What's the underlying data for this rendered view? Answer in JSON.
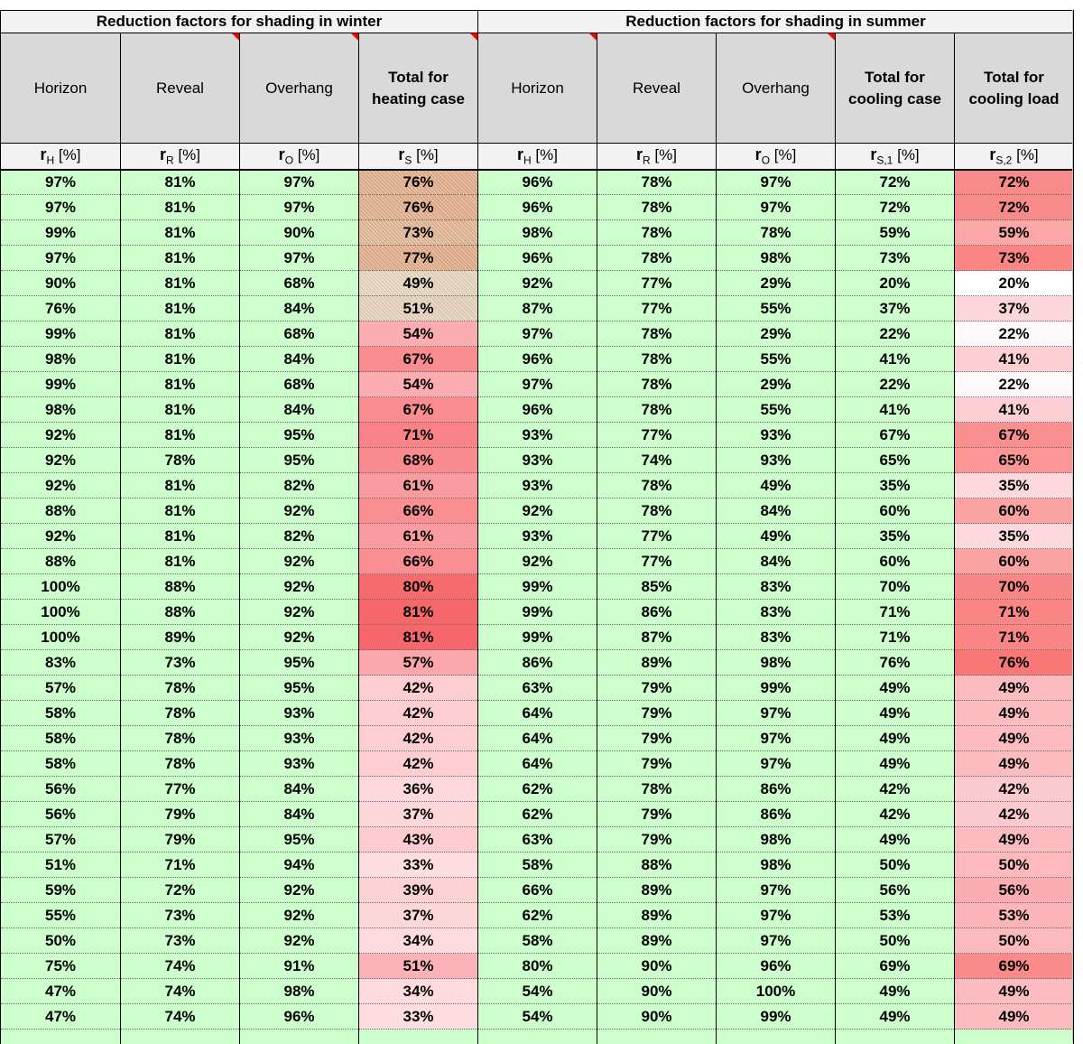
{
  "sheet": {
    "group_headers": [
      "Reduction factors for shading in winter",
      "Reduction factors for shading in summer"
    ],
    "column_titles": [
      {
        "line1": "Horizon",
        "line2": "",
        "bold": false,
        "note": false
      },
      {
        "line1": "Reveal",
        "line2": "",
        "bold": false,
        "note": true
      },
      {
        "line1": "Overhang",
        "line2": "",
        "bold": false,
        "note": true
      },
      {
        "line1": "Total for",
        "line2": "heating case",
        "bold": true,
        "note": true
      },
      {
        "line1": "Horizon",
        "line2": "",
        "bold": false,
        "note": true
      },
      {
        "line1": "Reveal",
        "line2": "",
        "bold": false,
        "note": false
      },
      {
        "line1": "Overhang",
        "line2": "",
        "bold": false,
        "note": true
      },
      {
        "line1": "Total for",
        "line2": "cooling case",
        "bold": true,
        "note": false
      },
      {
        "line1": "Total for",
        "line2": "cooling load",
        "bold": true,
        "note": false
      }
    ],
    "unit_symbols": [
      {
        "main": "r",
        "sub": "H",
        "unit": "[%]"
      },
      {
        "main": "r",
        "sub": "R",
        "unit": "[%]"
      },
      {
        "main": "r",
        "sub": "O",
        "unit": "[%]"
      },
      {
        "main": "r",
        "sub": "S",
        "unit": "[%]"
      },
      {
        "main": "r",
        "sub": "H",
        "unit": "[%]"
      },
      {
        "main": "r",
        "sub": "R",
        "unit": "[%]"
      },
      {
        "main": "r",
        "sub": "O",
        "unit": "[%]"
      },
      {
        "main": "r",
        "sub": "S,1",
        "unit": "[%]"
      },
      {
        "main": "r",
        "sub": "S,2",
        "unit": "[%]"
      }
    ],
    "colors": {
      "grid_fill": "#ccffcc",
      "header_fill": "#d9d9d9",
      "group_fill": "#f2f2f2",
      "comment_marker": "#ff0000"
    },
    "rows": [
      {
        "v": [
          "97%",
          "81%",
          "97%",
          "76%",
          "96%",
          "78%",
          "97%",
          "72%",
          "72%"
        ],
        "c4": "#e6b08c",
        "c9": "#f98a8a",
        "p4": true
      },
      {
        "v": [
          "97%",
          "81%",
          "97%",
          "76%",
          "96%",
          "78%",
          "97%",
          "72%",
          "72%"
        ],
        "c4": "#e6b08c",
        "c9": "#f98a8a",
        "p4": true
      },
      {
        "v": [
          "99%",
          "81%",
          "90%",
          "73%",
          "98%",
          "78%",
          "78%",
          "59%",
          "59%"
        ],
        "c4": "#e6b896",
        "c9": "#fba7a7",
        "p4": true
      },
      {
        "v": [
          "97%",
          "81%",
          "97%",
          "77%",
          "96%",
          "78%",
          "98%",
          "73%",
          "73%"
        ],
        "c4": "#e6ae8a",
        "c9": "#f98585",
        "p4": true
      },
      {
        "v": [
          "90%",
          "81%",
          "68%",
          "49%",
          "92%",
          "77%",
          "29%",
          "20%",
          "20%"
        ],
        "c4": "#ead8c0",
        "c9": "#ffffff",
        "p4": true
      },
      {
        "v": [
          "76%",
          "81%",
          "84%",
          "51%",
          "87%",
          "77%",
          "55%",
          "37%",
          "37%"
        ],
        "c4": "#ead4bc",
        "c9": "#fdd6dc",
        "p4": true
      },
      {
        "v": [
          "99%",
          "81%",
          "68%",
          "54%",
          "97%",
          "78%",
          "29%",
          "22%",
          "22%"
        ],
        "c4": "#fbadb2",
        "c9": "#fef9fa",
        "p4": false
      },
      {
        "v": [
          "98%",
          "81%",
          "84%",
          "67%",
          "96%",
          "78%",
          "55%",
          "41%",
          "41%"
        ],
        "c4": "#f98c8f",
        "c9": "#fdcfd5",
        "p4": false
      },
      {
        "v": [
          "99%",
          "81%",
          "68%",
          "54%",
          "97%",
          "78%",
          "29%",
          "22%",
          "22%"
        ],
        "c4": "#fbadb2",
        "c9": "#fef9fa",
        "p4": false
      },
      {
        "v": [
          "98%",
          "81%",
          "84%",
          "67%",
          "96%",
          "78%",
          "55%",
          "41%",
          "41%"
        ],
        "c4": "#f98c8f",
        "c9": "#fdcfd5",
        "p4": false
      },
      {
        "v": [
          "92%",
          "81%",
          "95%",
          "71%",
          "93%",
          "77%",
          "93%",
          "67%",
          "67%"
        ],
        "c4": "#f88285",
        "c9": "#fa8f8f",
        "p4": false
      },
      {
        "v": [
          "92%",
          "78%",
          "95%",
          "68%",
          "93%",
          "74%",
          "93%",
          "65%",
          "65%"
        ],
        "c4": "#f98a8d",
        "c9": "#fa9696",
        "p4": false
      },
      {
        "v": [
          "92%",
          "81%",
          "82%",
          "61%",
          "93%",
          "78%",
          "49%",
          "35%",
          "35%"
        ],
        "c4": "#fa9ba0",
        "c9": "#fdd9de",
        "p4": false
      },
      {
        "v": [
          "88%",
          "81%",
          "92%",
          "66%",
          "92%",
          "78%",
          "84%",
          "60%",
          "60%"
        ],
        "c4": "#f98f92",
        "c9": "#fba3a3",
        "p4": false
      },
      {
        "v": [
          "92%",
          "81%",
          "82%",
          "61%",
          "93%",
          "77%",
          "49%",
          "35%",
          "35%"
        ],
        "c4": "#fa9ba0",
        "c9": "#fdd9de",
        "p4": false
      },
      {
        "v": [
          "88%",
          "81%",
          "92%",
          "66%",
          "92%",
          "77%",
          "84%",
          "60%",
          "60%"
        ],
        "c4": "#f98f92",
        "c9": "#fba3a3",
        "p4": false
      },
      {
        "v": [
          "100%",
          "88%",
          "92%",
          "80%",
          "99%",
          "85%",
          "83%",
          "70%",
          "70%"
        ],
        "c4": "#f66b6e",
        "c9": "#f98787",
        "p4": false
      },
      {
        "v": [
          "100%",
          "88%",
          "92%",
          "81%",
          "99%",
          "86%",
          "83%",
          "71%",
          "71%"
        ],
        "c4": "#f5676a",
        "c9": "#f98585",
        "p4": false
      },
      {
        "v": [
          "100%",
          "89%",
          "92%",
          "81%",
          "99%",
          "87%",
          "83%",
          "71%",
          "71%"
        ],
        "c4": "#f5676a",
        "c9": "#f98585",
        "p4": false
      },
      {
        "v": [
          "83%",
          "73%",
          "95%",
          "57%",
          "86%",
          "89%",
          "98%",
          "76%",
          "76%"
        ],
        "c4": "#faa6ab",
        "c9": "#f87878",
        "p4": false
      },
      {
        "v": [
          "57%",
          "78%",
          "95%",
          "42%",
          "63%",
          "79%",
          "99%",
          "49%",
          "49%"
        ],
        "c4": "#fdcdd2",
        "c9": "#fcbcbf",
        "p4": false
      },
      {
        "v": [
          "58%",
          "78%",
          "93%",
          "42%",
          "64%",
          "79%",
          "97%",
          "49%",
          "49%"
        ],
        "c4": "#fdcdd2",
        "c9": "#fcbcbf",
        "p4": false
      },
      {
        "v": [
          "58%",
          "78%",
          "93%",
          "42%",
          "64%",
          "79%",
          "97%",
          "49%",
          "49%"
        ],
        "c4": "#fdcdd2",
        "c9": "#fcbcbf",
        "p4": false
      },
      {
        "v": [
          "58%",
          "78%",
          "93%",
          "42%",
          "64%",
          "79%",
          "97%",
          "49%",
          "49%"
        ],
        "c4": "#fdcdd2",
        "c9": "#fcbcbf",
        "p4": false
      },
      {
        "v": [
          "56%",
          "77%",
          "84%",
          "36%",
          "62%",
          "78%",
          "86%",
          "42%",
          "42%"
        ],
        "c4": "#fdd8dc",
        "c9": "#fcc9ce",
        "p4": false
      },
      {
        "v": [
          "56%",
          "79%",
          "84%",
          "37%",
          "62%",
          "79%",
          "86%",
          "42%",
          "42%"
        ],
        "c4": "#fdd6da",
        "c9": "#fcc9ce",
        "p4": false
      },
      {
        "v": [
          "57%",
          "79%",
          "95%",
          "43%",
          "63%",
          "79%",
          "98%",
          "49%",
          "49%"
        ],
        "c4": "#fdcbd0",
        "c9": "#fcbcbf",
        "p4": false
      },
      {
        "v": [
          "51%",
          "71%",
          "94%",
          "33%",
          "58%",
          "88%",
          "98%",
          "50%",
          "50%"
        ],
        "c4": "#fedde1",
        "c9": "#fcbabd",
        "p4": false
      },
      {
        "v": [
          "59%",
          "72%",
          "92%",
          "39%",
          "66%",
          "89%",
          "97%",
          "56%",
          "56%"
        ],
        "c4": "#fdd2d6",
        "c9": "#fbaeb1",
        "p4": false
      },
      {
        "v": [
          "55%",
          "73%",
          "92%",
          "37%",
          "62%",
          "89%",
          "97%",
          "53%",
          "53%"
        ],
        "c4": "#fdd6da",
        "c9": "#fbb4b7",
        "p4": false
      },
      {
        "v": [
          "50%",
          "73%",
          "92%",
          "34%",
          "58%",
          "89%",
          "97%",
          "50%",
          "50%"
        ],
        "c4": "#fedbdf",
        "c9": "#fcbabd",
        "p4": false
      },
      {
        "v": [
          "75%",
          "74%",
          "91%",
          "51%",
          "80%",
          "90%",
          "96%",
          "69%",
          "69%"
        ],
        "c4": "#fbb2b7",
        "c9": "#f98a8a",
        "p4": false
      },
      {
        "v": [
          "47%",
          "74%",
          "98%",
          "34%",
          "54%",
          "90%",
          "100%",
          "49%",
          "49%"
        ],
        "c4": "#fedbdf",
        "c9": "#fcbcbf",
        "p4": false
      },
      {
        "v": [
          "47%",
          "74%",
          "96%",
          "33%",
          "54%",
          "90%",
          "99%",
          "49%",
          "49%"
        ],
        "c4": "#fedde1",
        "c9": "#fcbcbf",
        "p4": false
      },
      {
        "v": [
          "",
          "",
          "",
          "",
          "",
          "",
          "",
          "",
          ""
        ],
        "c4": "#ccffcc",
        "c9": "#ccffcc",
        "p4": false
      }
    ]
  }
}
